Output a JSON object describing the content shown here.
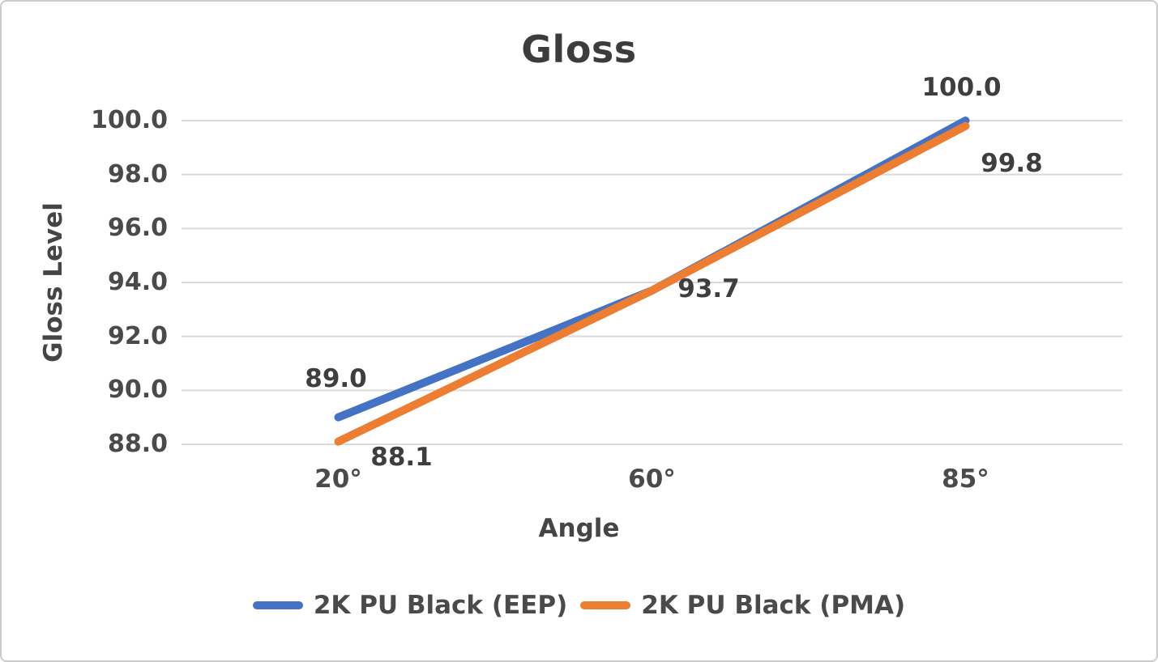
{
  "chart_data": {
    "type": "line",
    "title": "Gloss",
    "xlabel": "Angle",
    "ylabel": "Gloss Level",
    "categories": [
      "20°",
      "60°",
      "85°"
    ],
    "ylim": [
      88.0,
      100.0
    ],
    "ytick_step": 2.0,
    "ytick_labels": [
      "88.0",
      "90.0",
      "92.0",
      "94.0",
      "96.0",
      "98.0",
      "100.0"
    ],
    "grid": true,
    "legend_position": "bottom",
    "series": [
      {
        "name": "2K PU Black (EEP)",
        "color": "#4472C4",
        "values": [
          89.0,
          93.7,
          100.0
        ],
        "point_labels": [
          "89.0",
          "",
          "100.0"
        ]
      },
      {
        "name": "2K PU Black (PMA)",
        "color": "#ED7D31",
        "values": [
          88.1,
          93.7,
          99.8
        ],
        "point_labels": [
          "88.1",
          "93.7",
          "99.8"
        ]
      }
    ],
    "style": {
      "text_color": "#454545",
      "gridline_color": "#dadada",
      "border_color": "#cbcbcb",
      "background": "#ffffff"
    }
  }
}
